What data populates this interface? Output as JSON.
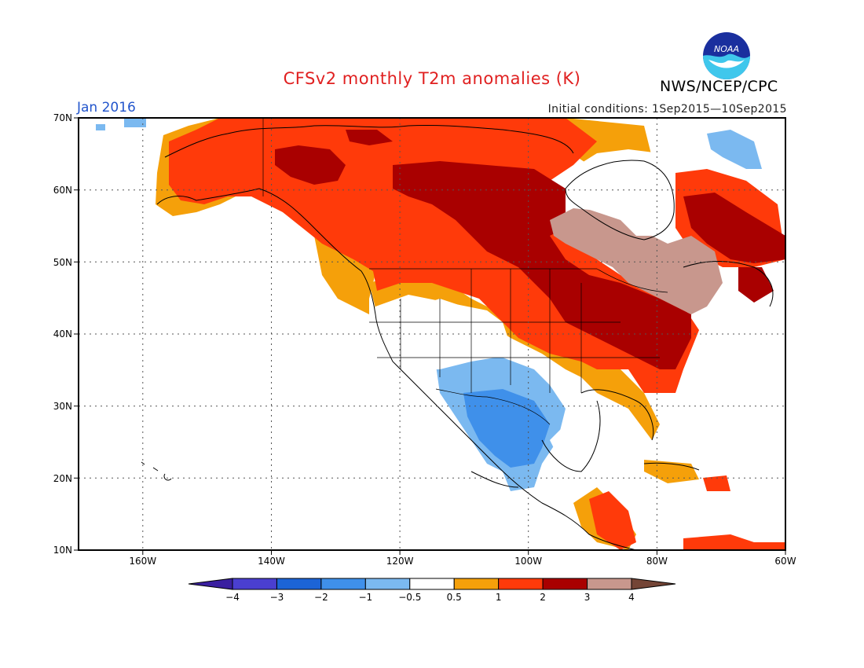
{
  "header": {
    "title": "CFSv2 monthly T2m anomalies (K)",
    "month": "Jan 2016",
    "initial_conditions": "Initial conditions: 1Sep2015—10Sep2015",
    "org": "NWS/NCEP/CPC",
    "logo_text": "NOAA"
  },
  "colors": {
    "title": "#e02020",
    "month": "#2255cc",
    "land_outline": "#000000",
    "grid": "#555555"
  },
  "axes": {
    "lat_labels": [
      "70N",
      "60N",
      "50N",
      "40N",
      "30N",
      "20N",
      "10N"
    ],
    "lon_labels": [
      "160W",
      "140W",
      "120W",
      "100W",
      "80W",
      "60W"
    ],
    "lat_range": [
      10,
      70
    ],
    "lon_range": [
      -170,
      -60
    ]
  },
  "colorbar": {
    "bins": [
      {
        "color": "#3a1fa0"
      },
      {
        "color": "#4a3fd0"
      },
      {
        "color": "#1c64d6"
      },
      {
        "color": "#3f90ea"
      },
      {
        "color": "#7bb9f0"
      },
      {
        "color": "#ffffff"
      },
      {
        "color": "#f5a00a"
      },
      {
        "color": "#ff3a0a"
      },
      {
        "color": "#a90000"
      },
      {
        "color": "#c8978d"
      },
      {
        "color": "#744536"
      }
    ],
    "labels": [
      "−4",
      "−3",
      "−2",
      "−1",
      "−0.5",
      "0.5",
      "1",
      "2",
      "3",
      "4"
    ]
  },
  "map_regions": [
    {
      "name": "alaska-warm",
      "level": "1-2"
    },
    {
      "name": "canada-hot",
      "level": "2-3"
    },
    {
      "name": "quebec-very-hot",
      "level": "3-4"
    },
    {
      "name": "southwest-cool",
      "level": "-1 to -0.5"
    },
    {
      "name": "mexico-cool",
      "level": "-2 to -1"
    }
  ]
}
